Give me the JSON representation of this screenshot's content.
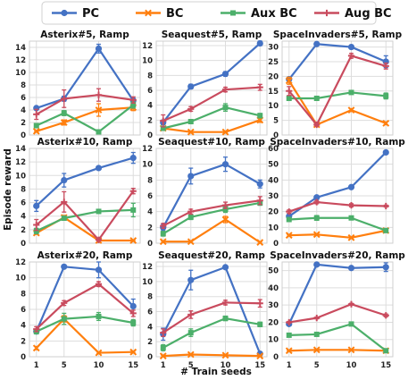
{
  "chart_data": {
    "type": "line",
    "shared_xlabel": "# Train seeds",
    "shared_ylabel": "Episode reward",
    "x": [
      1,
      5,
      10,
      15
    ],
    "grid": true,
    "legend": {
      "placement": "top-center",
      "entries": [
        {
          "name": "PC",
          "color": "#4472c4",
          "marker": "circle"
        },
        {
          "name": "BC",
          "color": "#ff7f0e",
          "marker": "x"
        },
        {
          "name": "Aux BC",
          "color": "#4caf6a",
          "marker": "square"
        },
        {
          "name": "Aug BC",
          "color": "#c94b5e",
          "marker": "plus"
        }
      ]
    },
    "panels": [
      {
        "title": "Asterix#5, Ramp",
        "ylim": [
          0,
          15
        ],
        "yticks": [
          0,
          2,
          4,
          6,
          8,
          10,
          12,
          14
        ],
        "series": [
          {
            "name": "PC",
            "values": [
              4.3,
              5.8,
              13.8,
              5.5
            ],
            "err": [
              0.2,
              0.4,
              0.7,
              0.4
            ]
          },
          {
            "name": "BC",
            "values": [
              0.6,
              2.0,
              4.0,
              4.4
            ],
            "err": [
              0.1,
              0.4,
              1.0,
              0.5
            ]
          },
          {
            "name": "Aux BC",
            "values": [
              1.5,
              3.5,
              0.5,
              4.8
            ],
            "err": [
              0.3,
              0.4,
              0.2,
              0.5
            ]
          },
          {
            "name": "Aug BC",
            "values": [
              3.3,
              5.8,
              6.4,
              5.6
            ],
            "err": [
              0.8,
              1.4,
              1.0,
              0.5
            ]
          }
        ]
      },
      {
        "title": "Seaquest#5, Ramp",
        "ylim": [
          0,
          12.6
        ],
        "yticks": [
          0,
          2,
          4,
          6,
          8,
          10,
          12
        ],
        "series": [
          {
            "name": "PC",
            "values": [
              1.7,
              6.5,
              8.2,
              12.3
            ],
            "err": [
              0.3,
              0.3,
              0.3,
              0.3
            ]
          },
          {
            "name": "BC",
            "values": [
              0.9,
              0.4,
              0.4,
              2.0
            ],
            "err": [
              0.1,
              0.1,
              0.1,
              0.3
            ]
          },
          {
            "name": "Aux BC",
            "values": [
              0.9,
              1.8,
              3.7,
              2.6
            ],
            "err": [
              0.2,
              0.2,
              0.5,
              0.3
            ]
          },
          {
            "name": "Aug BC",
            "values": [
              1.9,
              3.5,
              6.1,
              6.4
            ],
            "err": [
              0.8,
              0.3,
              0.3,
              0.4
            ]
          }
        ]
      },
      {
        "title": "SpaceInvaders#5, Ramp",
        "ylim": [
          0,
          32
        ],
        "yticks": [
          0,
          5,
          10,
          15,
          20,
          25,
          30
        ],
        "series": [
          {
            "name": "PC",
            "values": [
              19,
              31,
              30,
              25
            ],
            "err": [
              0.5,
              0.5,
              0.6,
              2.0
            ]
          },
          {
            "name": "BC",
            "values": [
              18.5,
              3.5,
              8.5,
              4.0
            ],
            "err": [
              1.2,
              0.5,
              0.5,
              0.5
            ]
          },
          {
            "name": "Aux BC",
            "values": [
              12.5,
              12.5,
              14.5,
              13.3
            ],
            "err": [
              0.5,
              0.6,
              0.5,
              1.0
            ]
          },
          {
            "name": "Aug BC",
            "values": [
              15,
              3.5,
              27,
              23.5
            ],
            "err": [
              1.5,
              0.5,
              0.8,
              1.0
            ]
          }
        ]
      },
      {
        "title": "Asterix#10, Ramp",
        "ylim": [
          0,
          14
        ],
        "yticks": [
          0,
          2,
          4,
          6,
          8,
          10,
          12,
          14
        ],
        "series": [
          {
            "name": "PC",
            "values": [
              5.5,
              9.3,
              11.1,
              12.6
            ],
            "err": [
              0.8,
              1.0,
              0.2,
              0.8
            ]
          },
          {
            "name": "BC",
            "values": [
              1.5,
              3.8,
              0.4,
              0.4
            ],
            "err": [
              0.2,
              0.3,
              0.1,
              0.1
            ]
          },
          {
            "name": "Aux BC",
            "values": [
              1.8,
              3.7,
              4.7,
              4.9
            ],
            "err": [
              0.4,
              0.3,
              0.3,
              1.0
            ]
          },
          {
            "name": "Aug BC",
            "values": [
              2.7,
              6.1,
              0.5,
              7.7
            ],
            "err": [
              0.8,
              1.5,
              0.2,
              0.4
            ]
          }
        ]
      },
      {
        "title": "Seaquest#10, Ramp",
        "ylim": [
          0,
          12
        ],
        "yticks": [
          0,
          2,
          4,
          6,
          8,
          10,
          12
        ],
        "series": [
          {
            "name": "PC",
            "values": [
              2.0,
              8.5,
              10.0,
              7.5
            ],
            "err": [
              0.4,
              1.0,
              0.9,
              0.5
            ]
          },
          {
            "name": "BC",
            "values": [
              0.2,
              0.2,
              3.0,
              0.1
            ],
            "err": [
              0.1,
              0.1,
              0.4,
              0.1
            ]
          },
          {
            "name": "Aux BC",
            "values": [
              1.2,
              3.3,
              4.3,
              5.1
            ],
            "err": [
              0.3,
              0.3,
              0.4,
              0.3
            ]
          },
          {
            "name": "Aug BC",
            "values": [
              2.2,
              4.0,
              4.8,
              5.4
            ],
            "err": [
              0.3,
              0.3,
              0.4,
              0.5
            ]
          }
        ]
      },
      {
        "title": "SpaceInvaders#10, Ramp",
        "ylim": [
          0,
          60
        ],
        "yticks": [
          0,
          10,
          20,
          30,
          40,
          50,
          60
        ],
        "series": [
          {
            "name": "PC",
            "values": [
              17,
              29,
              35.5,
              57.5
            ],
            "err": [
              1.0,
              1.0,
              1.0,
              0.6
            ]
          },
          {
            "name": "BC",
            "values": [
              5,
              5.5,
              3.5,
              8
            ],
            "err": [
              0.5,
              0.5,
              0.5,
              0.5
            ]
          },
          {
            "name": "Aux BC",
            "values": [
              15,
              16,
              16,
              8
            ],
            "err": [
              1.0,
              1.5,
              1.0,
              0.6
            ]
          },
          {
            "name": "Aug BC",
            "values": [
              20,
              26,
              24,
              23.5
            ],
            "err": [
              1.0,
              1.0,
              1.0,
              0.6
            ]
          }
        ]
      },
      {
        "title": "Asterix#20, Ramp",
        "ylim": [
          0,
          12
        ],
        "yticks": [
          0,
          2,
          4,
          6,
          8,
          10,
          12
        ],
        "series": [
          {
            "name": "PC",
            "values": [
              3.2,
              11.4,
              11.0,
              6.4
            ],
            "err": [
              0.3,
              0.2,
              1.0,
              0.9
            ]
          },
          {
            "name": "BC",
            "values": [
              1.1,
              4.8,
              0.5,
              0.6
            ],
            "err": [
              0.2,
              0.4,
              0.1,
              0.1
            ]
          },
          {
            "name": "Aux BC",
            "values": [
              3.2,
              4.8,
              5.1,
              4.3
            ],
            "err": [
              0.3,
              0.7,
              0.5,
              0.4
            ]
          },
          {
            "name": "Aug BC",
            "values": [
              3.5,
              6.8,
              9.2,
              5.5
            ],
            "err": [
              0.3,
              0.3,
              0.3,
              0.4
            ]
          }
        ]
      },
      {
        "title": "Seaquest#20, Ramp",
        "ylim": [
          0,
          12.6
        ],
        "yticks": [
          0,
          2,
          4,
          6,
          8,
          10,
          12
        ],
        "series": [
          {
            "name": "PC",
            "values": [
              3.0,
              10.2,
              11.9,
              0.4
            ],
            "err": [
              0.8,
              1.3,
              0.2,
              0.2
            ]
          },
          {
            "name": "BC",
            "values": [
              0.1,
              0.3,
              0.2,
              0.1
            ],
            "err": [
              0.1,
              0.1,
              0.1,
              0.1
            ]
          },
          {
            "name": "Aux BC",
            "values": [
              1.2,
              3.2,
              5.1,
              4.3
            ],
            "err": [
              0.4,
              0.5,
              0.3,
              0.3
            ]
          },
          {
            "name": "Aug BC",
            "values": [
              3.2,
              5.6,
              7.2,
              7.1
            ],
            "err": [
              0.5,
              0.5,
              0.3,
              0.5
            ]
          }
        ]
      },
      {
        "title": "SpaceInvaders#20, Ramp",
        "ylim": [
          0,
          55
        ],
        "yticks": [
          0,
          10,
          20,
          30,
          40,
          50
        ],
        "series": [
          {
            "name": "PC",
            "values": [
              19,
              53.5,
              51.5,
              52
            ],
            "err": [
              0.5,
              0.4,
              0.6,
              2.5
            ]
          },
          {
            "name": "BC",
            "values": [
              3.5,
              4,
              4,
              3.5
            ],
            "err": [
              0.3,
              0.3,
              0.3,
              0.3
            ]
          },
          {
            "name": "Aux BC",
            "values": [
              12.5,
              13,
              19,
              3.5
            ],
            "err": [
              0.3,
              0.3,
              0.3,
              0.3
            ]
          },
          {
            "name": "Aug BC",
            "values": [
              20,
              22.5,
              30.5,
              24
            ],
            "err": [
              0.5,
              0.5,
              0.5,
              0.8
            ]
          }
        ]
      }
    ]
  }
}
